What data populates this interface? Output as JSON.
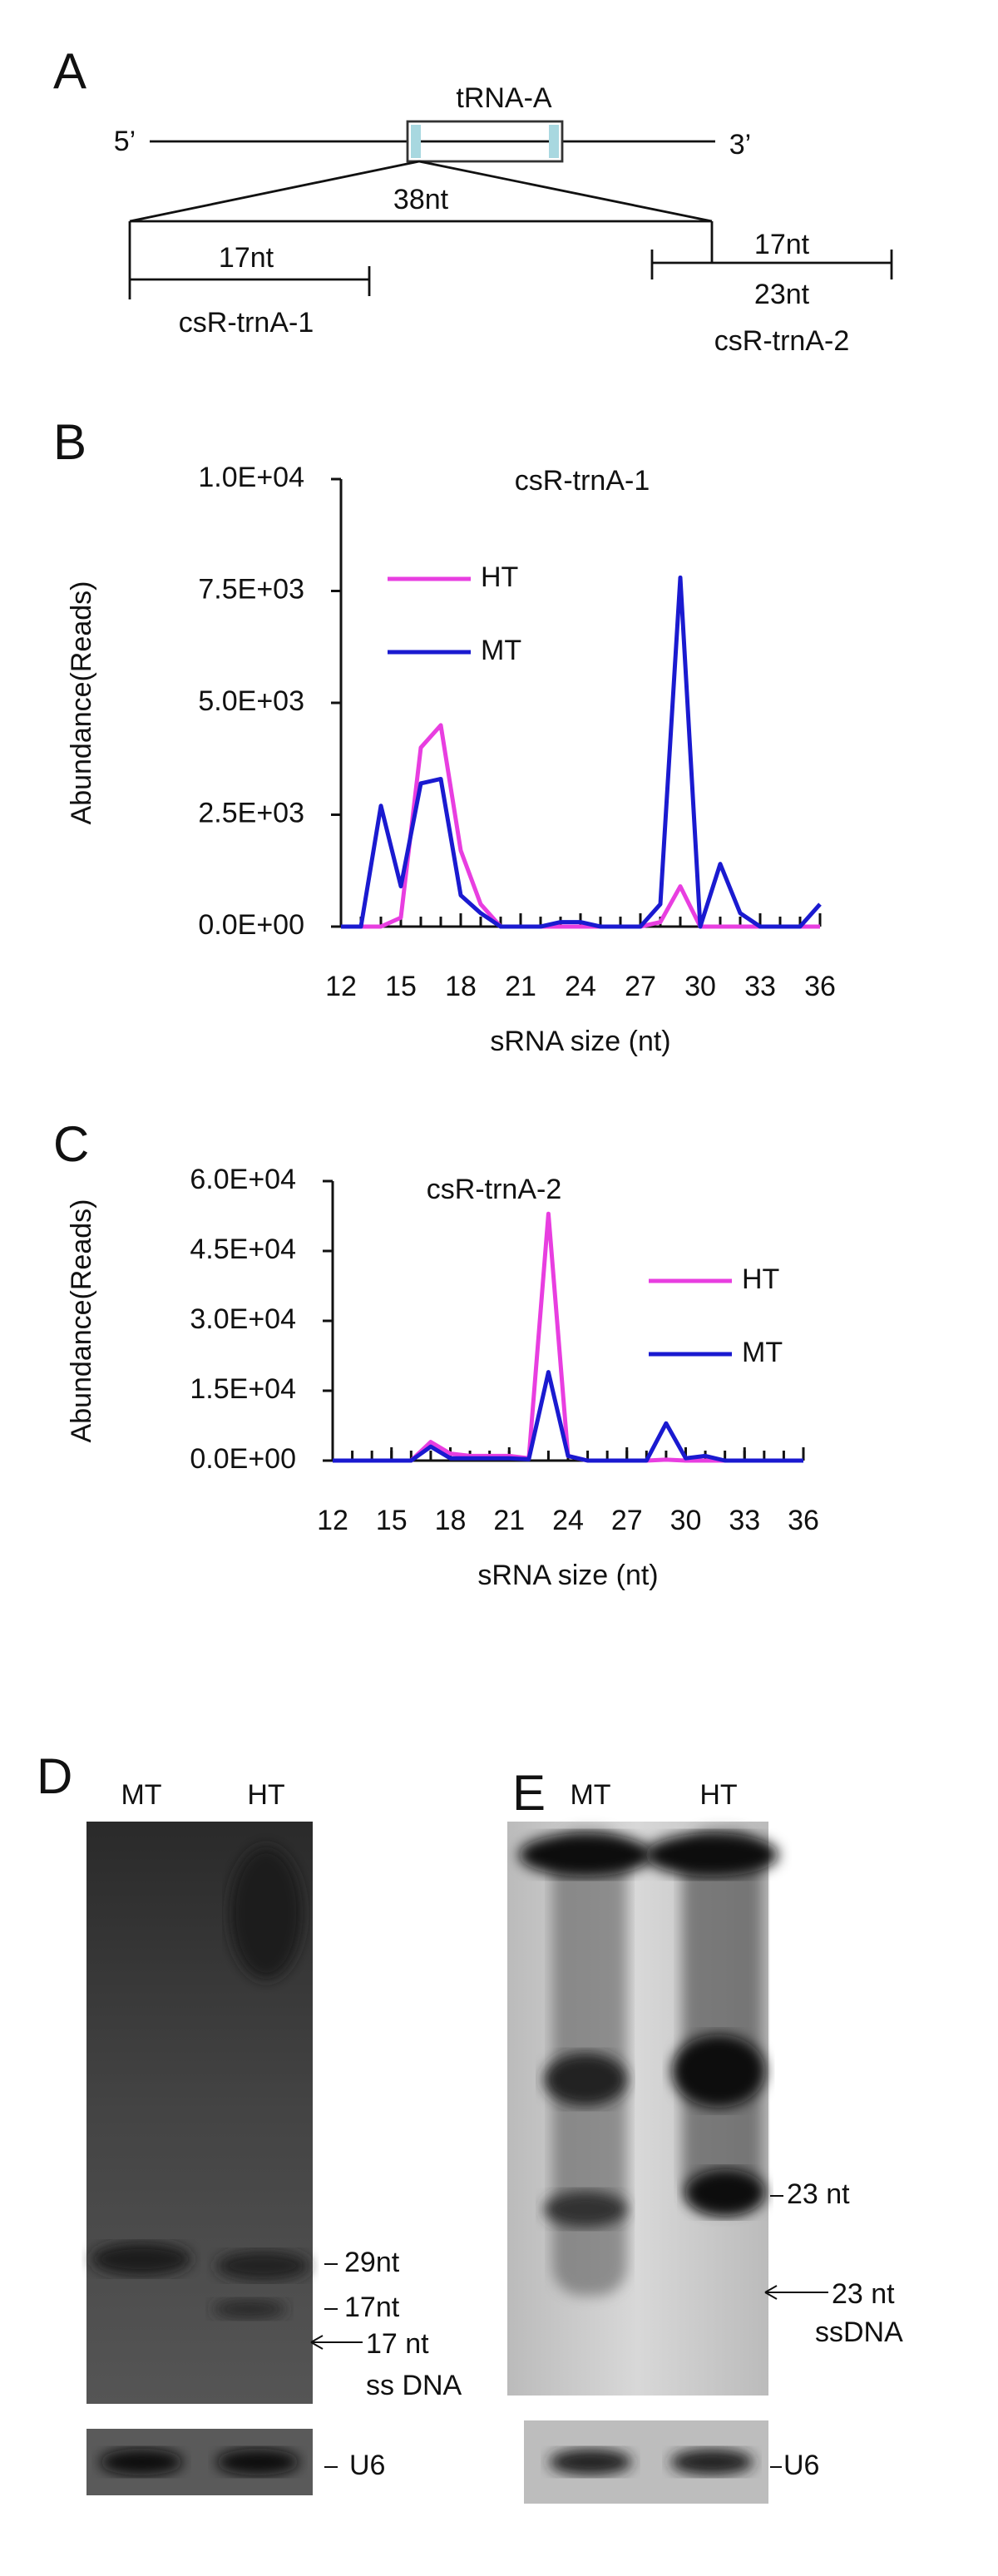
{
  "diagram": {
    "label": "A",
    "gene": "tRNA-A",
    "five_prime": "5’",
    "three_prime": "3’",
    "span": "38nt",
    "left_len": "17nt",
    "left_name": "csR-trnA-1",
    "right_len_top": "17nt",
    "right_len_bottom": "23nt",
    "right_name": "csR-trnA-2"
  },
  "chart_data": [
    {
      "type": "line",
      "label": "B",
      "title": "csR-trnA-1",
      "x_label": "sRNA size (nt)",
      "y_label": "Abundance(Reads)",
      "x": [
        12,
        13,
        14,
        15,
        16,
        17,
        18,
        19,
        20,
        21,
        22,
        23,
        24,
        25,
        26,
        27,
        28,
        29,
        30,
        31,
        32,
        33,
        34,
        35,
        36
      ],
      "xlim": [
        12,
        36
      ],
      "xticks": [
        12,
        15,
        18,
        21,
        24,
        27,
        30,
        33,
        36
      ],
      "ylim": [
        0,
        10000
      ],
      "yticks": [
        {
          "value": 0,
          "label": "0.0E+00"
        },
        {
          "value": 2500,
          "label": "2.5E+03"
        },
        {
          "value": 5000,
          "label": "5.0E+03"
        },
        {
          "value": 7500,
          "label": "7.5E+03"
        },
        {
          "value": 10000,
          "label": "1.0E+04"
        }
      ],
      "legend": "upper left",
      "series": [
        {
          "name": "HT",
          "color": "#e83ee0",
          "values": [
            0,
            0,
            0,
            200,
            4000,
            4500,
            1700,
            500,
            0,
            0,
            0,
            0,
            0,
            0,
            0,
            0,
            100,
            900,
            0,
            0,
            0,
            0,
            0,
            0,
            0
          ]
        },
        {
          "name": "MT",
          "color": "#1a1ad0",
          "values": [
            0,
            0,
            2700,
            900,
            3200,
            3300,
            700,
            300,
            0,
            0,
            0,
            100,
            100,
            0,
            0,
            0,
            500,
            7800,
            0,
            1400,
            300,
            0,
            0,
            0,
            500
          ]
        }
      ]
    },
    {
      "type": "line",
      "label": "C",
      "title": "csR-trnA-2",
      "x_label": "sRNA size (nt)",
      "y_label": "Abundance(Reads)",
      "x": [
        12,
        13,
        14,
        15,
        16,
        17,
        18,
        19,
        20,
        21,
        22,
        23,
        24,
        25,
        26,
        27,
        28,
        29,
        30,
        31,
        32,
        33,
        34,
        35,
        36
      ],
      "xlim": [
        12,
        36
      ],
      "xticks": [
        12,
        15,
        18,
        21,
        24,
        27,
        30,
        33,
        36
      ],
      "ylim": [
        0,
        60000
      ],
      "yticks": [
        {
          "value": 0,
          "label": "0.0E+00"
        },
        {
          "value": 15000,
          "label": "1.5E+04"
        },
        {
          "value": 30000,
          "label": "3.0E+04"
        },
        {
          "value": 45000,
          "label": "4.5E+04"
        },
        {
          "value": 60000,
          "label": "6.0E+04"
        }
      ],
      "legend": "upper right",
      "series": [
        {
          "name": "HT",
          "color": "#e83ee0",
          "values": [
            0,
            0,
            0,
            0,
            0,
            4000,
            1500,
            1000,
            1000,
            1000,
            500,
            53000,
            1000,
            0,
            0,
            0,
            0,
            200,
            0,
            0,
            0,
            0,
            0,
            0,
            0
          ]
        },
        {
          "name": "MT",
          "color": "#1a1ad0",
          "values": [
            0,
            0,
            0,
            0,
            0,
            3000,
            500,
            500,
            500,
            500,
            300,
            19000,
            1000,
            0,
            0,
            0,
            0,
            8000,
            500,
            1000,
            0,
            0,
            0,
            0,
            0
          ]
        }
      ]
    }
  ],
  "blots": [
    {
      "label": "D",
      "lanes": [
        "MT",
        "HT"
      ],
      "markers": [
        "29nt",
        "17nt"
      ],
      "probe": [
        "17 nt",
        "ss DNA"
      ],
      "control": "U6"
    },
    {
      "label": "E",
      "lanes": [
        "MT",
        "HT"
      ],
      "markers": [
        "23 nt"
      ],
      "probe": [
        "23 nt",
        "ssDNA"
      ],
      "control": "U6"
    }
  ]
}
